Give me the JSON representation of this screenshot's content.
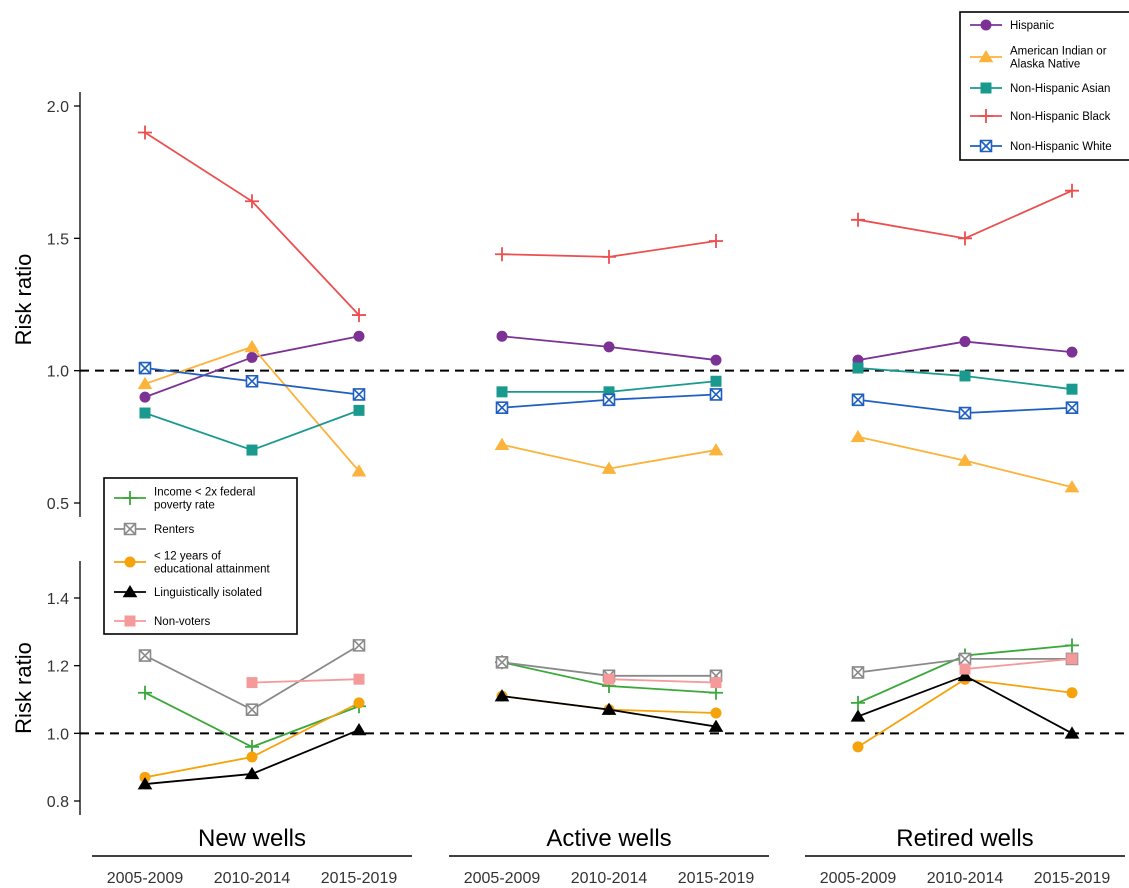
{
  "chart_data": [
    {
      "type": "line",
      "ylabel": "Risk ratio",
      "ylim": [
        0.5,
        2.0
      ],
      "yticks": [
        "0.5",
        "1.0",
        "1.5",
        "2.0"
      ],
      "reference_line": 1.0,
      "legend_placement": "top-right",
      "panels": [
        "New wells",
        "Active wells",
        "Retired wells"
      ],
      "categories": [
        "2005-2009",
        "2010-2014",
        "2015-2019"
      ],
      "series": [
        {
          "name": "Hispanic",
          "color": "#7b3294",
          "marker": "circle",
          "values": [
            [
              0.9,
              1.05,
              1.13
            ],
            [
              1.13,
              1.09,
              1.04
            ],
            [
              1.04,
              1.11,
              1.07
            ]
          ]
        },
        {
          "name": "American Indian or Alaska Native",
          "color": "#fbb33c",
          "marker": "triangle",
          "values": [
            [
              0.95,
              1.09,
              0.62
            ],
            [
              0.72,
              0.63,
              0.7
            ],
            [
              0.75,
              0.66,
              0.56
            ]
          ]
        },
        {
          "name": "Non-Hispanic Asian",
          "color": "#1a9a8f",
          "marker": "square",
          "values": [
            [
              0.84,
              0.7,
              0.85
            ],
            [
              0.92,
              0.92,
              0.96
            ],
            [
              1.01,
              0.98,
              0.93
            ]
          ]
        },
        {
          "name": "Non-Hispanic Black",
          "color": "#ec4f4f",
          "marker": "plus",
          "values": [
            [
              1.9,
              1.64,
              1.21
            ],
            [
              1.44,
              1.43,
              1.49
            ],
            [
              1.57,
              1.5,
              1.68
            ]
          ]
        },
        {
          "name": "Non-Hispanic White",
          "color": "#1f5fbf",
          "marker": "boxx",
          "values": [
            [
              1.01,
              0.96,
              0.91
            ],
            [
              0.86,
              0.89,
              0.91
            ],
            [
              0.89,
              0.84,
              0.86
            ]
          ]
        }
      ]
    },
    {
      "type": "line",
      "ylabel": "Risk ratio",
      "ylim": [
        0.8,
        1.4
      ],
      "yticks": [
        "0.8",
        "1.0",
        "1.2",
        "1.4"
      ],
      "reference_line": 1.0,
      "legend_placement": "top-left",
      "panels": [
        "New wells",
        "Active wells",
        "Retired wells"
      ],
      "categories": [
        "2005-2009",
        "2010-2014",
        "2015-2019"
      ],
      "series": [
        {
          "name": "Income < 2x federal poverty rate",
          "color": "#3aa83a",
          "marker": "plus",
          "values": [
            [
              1.12,
              0.96,
              1.08
            ],
            [
              1.21,
              1.14,
              1.12
            ],
            [
              1.09,
              1.23,
              1.26
            ]
          ]
        },
        {
          "name": "Renters",
          "color": "#8a8a8a",
          "marker": "boxx",
          "values": [
            [
              1.23,
              1.07,
              1.26
            ],
            [
              1.21,
              1.17,
              1.17
            ],
            [
              1.18,
              1.22,
              1.22
            ]
          ]
        },
        {
          "name": "< 12 years of educational attainment",
          "color": "#f5a20b",
          "marker": "circle",
          "values": [
            [
              0.87,
              0.93,
              1.09
            ],
            [
              1.11,
              1.07,
              1.06
            ],
            [
              0.96,
              1.16,
              1.12
            ]
          ]
        },
        {
          "name": "Linguistically isolated",
          "color": "#000000",
          "marker": "triangle",
          "values": [
            [
              0.85,
              0.88,
              1.01
            ],
            [
              1.11,
              1.07,
              1.02
            ],
            [
              1.05,
              1.17,
              1.0
            ]
          ]
        },
        {
          "name": "Non-voters",
          "color": "#f59a9a",
          "marker": "square",
          "values": [
            [
              null,
              1.15,
              1.16
            ],
            [
              null,
              1.16,
              1.15
            ],
            [
              null,
              1.19,
              1.22
            ]
          ]
        }
      ]
    }
  ],
  "legend_top": {
    "items": [
      {
        "lines": [
          "Hispanic"
        ]
      },
      {
        "lines": [
          "American Indian or",
          "Alaska Native"
        ]
      },
      {
        "lines": [
          "Non-Hispanic Asian"
        ]
      },
      {
        "lines": [
          "Non-Hispanic Black"
        ]
      },
      {
        "lines": [
          "Non-Hispanic White"
        ]
      }
    ]
  },
  "legend_bottom": {
    "items": [
      {
        "lines": [
          "Income < 2x federal",
          "poverty rate"
        ]
      },
      {
        "lines": [
          "Renters"
        ]
      },
      {
        "lines": [
          "< 12 years of",
          "educational attainment"
        ]
      },
      {
        "lines": [
          "Linguistically isolated"
        ]
      },
      {
        "lines": [
          "Non-voters"
        ]
      }
    ]
  }
}
